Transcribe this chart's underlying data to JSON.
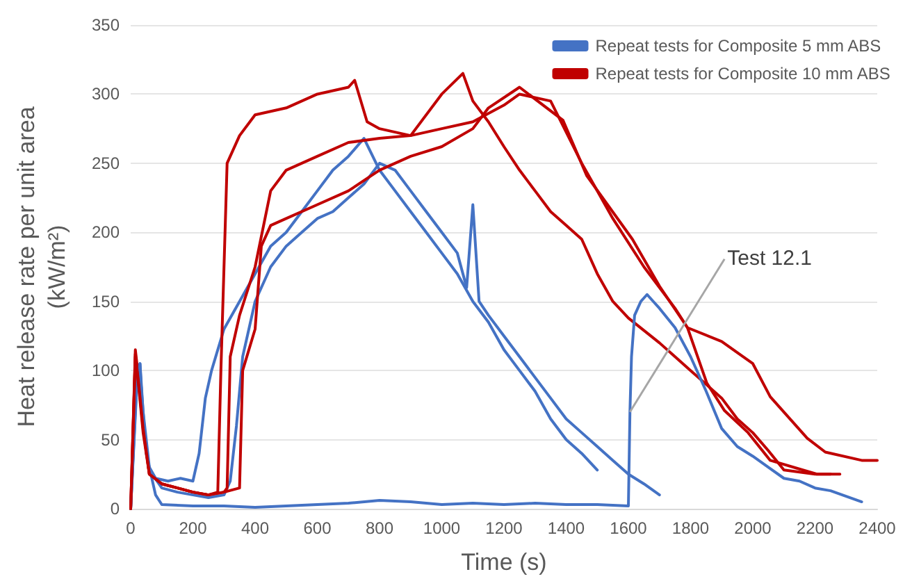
{
  "chart_data": {
    "type": "line",
    "xlabel": "Time (s)",
    "ylabel": "Heat release rate per unit area\n(kW/m²)",
    "xlim": [
      0,
      2400
    ],
    "xticks": [
      0,
      200,
      400,
      600,
      800,
      1000,
      1200,
      1400,
      1600,
      1800,
      2000,
      2200,
      2400
    ],
    "ylim": [
      0,
      350
    ],
    "yticks": [
      0,
      50,
      100,
      150,
      200,
      250,
      300,
      350
    ],
    "grid": "y",
    "legend": "top right",
    "marker": "none",
    "line_style": "solid",
    "annotations": [
      {
        "text": "Test 12.1",
        "x": 1605,
        "y": 70
      }
    ],
    "series": [
      {
        "name": "Repeat tests for Composite 5 mm ABS",
        "color": "#4472c4",
        "x": [
          0,
          20,
          30,
          40,
          60,
          80,
          120,
          160,
          200,
          220,
          240,
          260,
          300,
          350,
          400,
          450,
          500,
          550,
          600,
          650,
          700,
          750,
          800,
          850,
          900,
          950,
          1000,
          1050,
          1100,
          1150,
          1200,
          1250,
          1300,
          1350,
          1400,
          1450,
          1500
        ],
        "values": [
          0,
          100,
          105,
          70,
          30,
          22,
          20,
          22,
          20,
          40,
          80,
          100,
          130,
          150,
          170,
          190,
          200,
          215,
          230,
          245,
          255,
          268,
          245,
          230,
          215,
          200,
          185,
          170,
          150,
          135,
          115,
          100,
          85,
          65,
          50,
          40,
          28
        ]
      },
      {
        "name": "Repeat tests for Composite 10 mm ABS",
        "color": "#c00000",
        "x": [
          0,
          15,
          25,
          40,
          60,
          100,
          150,
          200,
          250,
          280,
          290,
          310,
          350,
          400,
          500,
          600,
          700,
          720,
          760,
          800,
          900,
          1000,
          1068,
          1100,
          1150,
          1200,
          1250,
          1300,
          1350,
          1400,
          1450,
          1500,
          1550,
          1600,
          1700,
          1800,
          1900,
          1950,
          2000,
          2050,
          2100,
          2200,
          2250
        ],
        "values": [
          0,
          115,
          95,
          60,
          25,
          18,
          15,
          12,
          10,
          12,
          100,
          250,
          270,
          285,
          290,
          300,
          305,
          310,
          280,
          275,
          270,
          300,
          315,
          295,
          280,
          262,
          245,
          230,
          215,
          205,
          195,
          170,
          150,
          138,
          120,
          100,
          80,
          65,
          55,
          42,
          28,
          25,
          25
        ]
      },
      {
        "color": "#4472c4",
        "x": [
          0,
          20,
          30,
          40,
          60,
          100,
          150,
          200,
          250,
          300,
          320,
          340,
          360,
          380,
          400,
          450,
          500,
          550,
          600,
          650,
          700,
          750,
          800,
          850,
          900,
          950,
          1000,
          1050,
          1080,
          1100,
          1120,
          1150,
          1200,
          1250,
          1300,
          1350,
          1400,
          1450,
          1500,
          1550,
          1600,
          1650,
          1700
        ],
        "values": [
          0,
          95,
          105,
          60,
          28,
          15,
          12,
          10,
          8,
          10,
          20,
          60,
          110,
          130,
          150,
          175,
          190,
          200,
          210,
          215,
          225,
          235,
          250,
          245,
          230,
          215,
          200,
          185,
          160,
          220,
          150,
          140,
          125,
          110,
          95,
          80,
          65,
          55,
          45,
          35,
          25,
          18,
          10
        ]
      },
      {
        "color": "#4472c4",
        "x": [
          0,
          20,
          30,
          50,
          80,
          100,
          200,
          300,
          400,
          500,
          600,
          700,
          800,
          900,
          1000,
          1100,
          1200,
          1300,
          1400,
          1500,
          1600,
          1605,
          1610,
          1620,
          1640,
          1660,
          1680,
          1700,
          1750,
          1800,
          1850,
          1900,
          1950,
          2000,
          2050,
          2100,
          2150,
          2200,
          2250,
          2300,
          2350
        ],
        "values": [
          0,
          90,
          100,
          40,
          10,
          3,
          2,
          2,
          1,
          2,
          3,
          4,
          6,
          5,
          3,
          4,
          3,
          4,
          3,
          3,
          2,
          70,
          110,
          140,
          150,
          155,
          150,
          145,
          131,
          110,
          85,
          58,
          45,
          38,
          30,
          22,
          20,
          15,
          13,
          9,
          5
        ]
      },
      {
        "color": "#c00000",
        "x": [
          0,
          15,
          25,
          40,
          60,
          100,
          150,
          200,
          250,
          300,
          310,
          320,
          350,
          400,
          450,
          500,
          550,
          600,
          700,
          800,
          900,
          1000,
          1100,
          1200,
          1250,
          1350,
          1450,
          1550,
          1650,
          1750,
          1790,
          1900,
          2000,
          2056,
          2175,
          2233,
          2350,
          2400
        ],
        "values": [
          0,
          110,
          90,
          55,
          25,
          18,
          15,
          12,
          10,
          12,
          15,
          110,
          140,
          175,
          230,
          245,
          250,
          255,
          265,
          268,
          270,
          275,
          280,
          292,
          300,
          295,
          250,
          210,
          175,
          145,
          131,
          121,
          105,
          81,
          51,
          41,
          35,
          35
        ]
      },
      {
        "color": "#c00000",
        "x": [
          0,
          15,
          25,
          40,
          60,
          100,
          150,
          200,
          250,
          300,
          350,
          360,
          400,
          420,
          450,
          500,
          600,
          700,
          800,
          900,
          1000,
          1100,
          1150,
          1250,
          1390,
          1466,
          1613,
          1700,
          1790,
          1852,
          1909,
          1985,
          2056,
          2206,
          2280
        ],
        "values": [
          0,
          112,
          92,
          58,
          25,
          18,
          15,
          12,
          10,
          12,
          15,
          100,
          130,
          190,
          205,
          210,
          220,
          230,
          245,
          255,
          262,
          275,
          290,
          305,
          281,
          241,
          195,
          161,
          131,
          91,
          71,
          55,
          35,
          25,
          25
        ]
      }
    ]
  }
}
